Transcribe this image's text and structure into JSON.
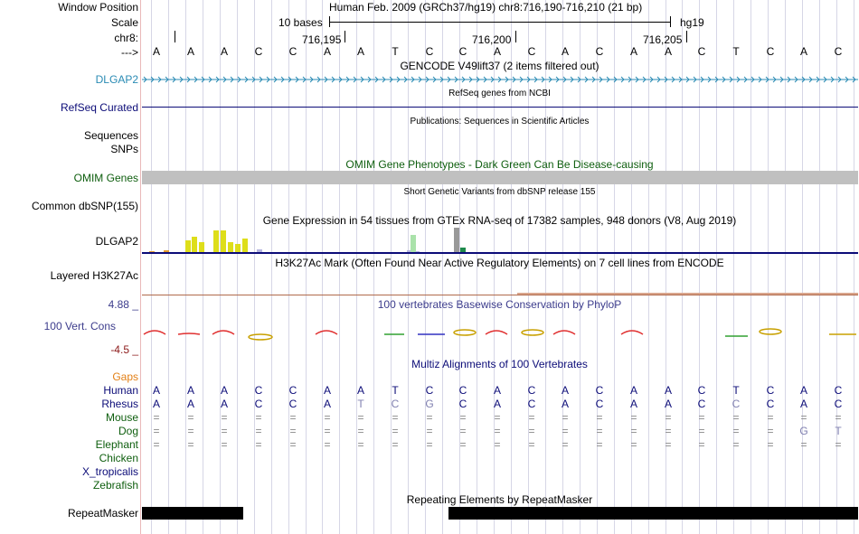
{
  "header": {
    "window_position_label": "Window Position",
    "scale_label": "Scale",
    "chrom_label": "chr8:",
    "arrow_label": "--->",
    "position_text": "Human Feb. 2009 (GRCh37/hg19)   chr8:716,190-716,210 (21 bp)",
    "scale_text": "10 bases",
    "assembly": "hg19",
    "ticks": [
      "716,195",
      "716,200",
      "716,205"
    ]
  },
  "sequence": [
    "A",
    "A",
    "A",
    "C",
    "C",
    "A",
    "A",
    "T",
    "C",
    "C",
    "A",
    "C",
    "A",
    "C",
    "A",
    "A",
    "C",
    "T",
    "C",
    "A",
    "C"
  ],
  "tracks": {
    "gencode": {
      "title": "GENCODE V49lift37 (2 items filtered out)",
      "label": "DLGAP2",
      "label_color": "#2a8bb4"
    },
    "refseq": {
      "title": "RefSeq genes from NCBI",
      "label": "RefSeq Curated",
      "label_color": "#0c0c78"
    },
    "publications": {
      "title": "Publications: Sequences in Scientific Articles",
      "label_a": "Sequences",
      "label_b": "SNPs"
    },
    "omim": {
      "title": "OMIM Gene Phenotypes - Dark Green Can Be Disease-causing",
      "label": "OMIM Genes",
      "label_color": "#0e5e0e"
    },
    "dbsnp": {
      "title": "Short Genetic Variants from dbSNP release 155",
      "label": "Common dbSNP(155)"
    },
    "gtex": {
      "title": "Gene Expression in 54 tissues from GTEx RNA-seq of 17382 samples, 948 donors (V8, Aug 2019)",
      "label": "DLGAP2",
      "bars": [
        {
          "pos": 0.01,
          "h": 2,
          "c": "#e29a2e"
        },
        {
          "pos": 0.03,
          "h": 3,
          "c": "#e29a2e"
        },
        {
          "pos": 0.06,
          "h": 14,
          "c": "#dede1a"
        },
        {
          "pos": 0.07,
          "h": 18,
          "c": "#dede1a"
        },
        {
          "pos": 0.08,
          "h": 12,
          "c": "#dede1a"
        },
        {
          "pos": 0.1,
          "h": 25,
          "c": "#dede1a"
        },
        {
          "pos": 0.11,
          "h": 25,
          "c": "#dede1a"
        },
        {
          "pos": 0.12,
          "h": 12,
          "c": "#dede1a"
        },
        {
          "pos": 0.13,
          "h": 10,
          "c": "#dede1a"
        },
        {
          "pos": 0.14,
          "h": 16,
          "c": "#dede1a"
        },
        {
          "pos": 0.16,
          "h": 4,
          "c": "#b5b5e0"
        },
        {
          "pos": 0.37,
          "h": 3,
          "c": "#b5b5e0"
        },
        {
          "pos": 0.38,
          "h": 2,
          "c": "#b5b5e0"
        },
        {
          "pos": 0.375,
          "h": 20,
          "c": "#aae2aa"
        },
        {
          "pos": 0.435,
          "h": 28,
          "c": "#999999"
        },
        {
          "pos": 0.445,
          "h": 6,
          "c": "#1f8a4c"
        }
      ]
    },
    "h3k27ac": {
      "title": "H3K27Ac Mark (Often Found Near Active Regulatory Elements) on 7 cell lines from ENCODE",
      "label": "Layered H3K27Ac"
    },
    "cons": {
      "title": "100 vertebrates Basewise Conservation by PhyloP",
      "label": "100 Vert. Cons",
      "max": "4.88 _",
      "min": "-4.5 _",
      "label_color": "#3c3c8c"
    },
    "multiz": {
      "title": "Multiz Alignments of 100 Vertebrates",
      "gaps_label": "Gaps",
      "species": [
        {
          "name": "Human",
          "color": "#0c0c78"
        },
        {
          "name": "Rhesus",
          "color": "#0c0c78"
        },
        {
          "name": "Mouse",
          "color": "#0e5e0e"
        },
        {
          "name": "Dog",
          "color": "#0e5e0e"
        },
        {
          "name": "Elephant",
          "color": "#0e5e0e"
        },
        {
          "name": "Chicken",
          "color": "#0e5e0e"
        },
        {
          "name": "X_tropicalis",
          "color": "#0c0c78"
        },
        {
          "name": "Zebrafish",
          "color": "#0e5e0e"
        }
      ],
      "human_row": [
        "A",
        "A",
        "A",
        "C",
        "C",
        "A",
        "A",
        "T",
        "C",
        "C",
        "A",
        "C",
        "A",
        "C",
        "A",
        "A",
        "C",
        "T",
        "C",
        "A",
        "C"
      ],
      "rhesus_row": [
        "A",
        "A",
        "A",
        "C",
        "C",
        "A",
        "T",
        "C",
        "G",
        "C",
        "A",
        "C",
        "A",
        "C",
        "A",
        "A",
        "C",
        "C",
        "C",
        "A",
        "C"
      ],
      "mouse_row": [
        "=",
        "=",
        "=",
        "=",
        "=",
        "=",
        "=",
        "=",
        "=",
        "=",
        "=",
        "=",
        "=",
        "=",
        "=",
        "=",
        "=",
        "=",
        "=",
        "=",
        "="
      ],
      "dog_row": [
        "=",
        "=",
        "=",
        "=",
        "=",
        "=",
        "=",
        "=",
        "=",
        "=",
        "=",
        "=",
        "=",
        "=",
        "=",
        "=",
        "=",
        "=",
        "=",
        "G",
        "T"
      ],
      "elephant_row": [
        "=",
        "=",
        "=",
        "=",
        "=",
        "=",
        "=",
        "=",
        "=",
        "=",
        "=",
        "=",
        "=",
        "=",
        "=",
        "=",
        "=",
        "=",
        "=",
        "=",
        "="
      ]
    },
    "repeatmasker": {
      "title": "Repeating Elements by RepeatMasker",
      "label": "RepeatMasker"
    }
  },
  "colors": {
    "gencode": "#2a8bb4",
    "refseq": "#0c0c78",
    "omim_bar": "#c0c0c0",
    "label_blue": "#0c0c78",
    "label_green": "#0e5e0e",
    "gaps": "#e38016"
  }
}
